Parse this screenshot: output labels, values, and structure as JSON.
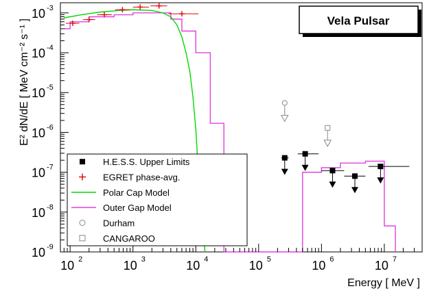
{
  "chart_data": {
    "type": "scatter",
    "title": "Vela Pulsar",
    "xlabel": "Energy [ MeV ]",
    "ylabel": "E² dN/dE [ MeV cm⁻² s⁻¹ ]",
    "xscale": "log",
    "yscale": "log",
    "xlim": [
      70,
      40000000
    ],
    "ylim": [
      1e-09,
      0.0018
    ],
    "x_ticks": [
      {
        "value": 100,
        "base": "10",
        "exp": "2"
      },
      {
        "value": 1000,
        "base": "10",
        "exp": "3"
      },
      {
        "value": 10000,
        "base": "10",
        "exp": "4"
      },
      {
        "value": 100000,
        "base": "10",
        "exp": "5"
      },
      {
        "value": 1000000,
        "base": "10",
        "exp": "6"
      },
      {
        "value": 10000000,
        "base": "10",
        "exp": "7"
      }
    ],
    "y_ticks": [
      {
        "value": 1e-09,
        "base": "10",
        "exp": "-9"
      },
      {
        "value": 1e-08,
        "base": "10",
        "exp": "-8"
      },
      {
        "value": 1e-07,
        "base": "10",
        "exp": "-7"
      },
      {
        "value": 1e-06,
        "base": "10",
        "exp": "-6"
      },
      {
        "value": 1e-05,
        "base": "10",
        "exp": "-5"
      },
      {
        "value": 0.0001,
        "base": "10",
        "exp": "-4"
      },
      {
        "value": 0.001,
        "base": "10",
        "exp": "-3"
      }
    ],
    "legend_position": "bottom-left",
    "series": [
      {
        "name": "H.E.S.S. Upper Limits",
        "kind": "upper_limit",
        "color": "#000000",
        "points": [
          {
            "x": 260000,
            "y": 2.3e-07,
            "xlo": 230000,
            "xhi": 300000
          },
          {
            "x": 550000,
            "y": 2.9e-07,
            "xlo": 420000,
            "xhi": 900000
          },
          {
            "x": 1500000,
            "y": 1.1e-07,
            "xlo": 1000000,
            "xhi": 2300000
          },
          {
            "x": 3400000,
            "y": 8e-08,
            "xlo": 2300000,
            "xhi": 5000000
          },
          {
            "x": 8700000,
            "y": 1.4e-07,
            "xlo": 5600000,
            "xhi": 25000000
          }
        ]
      },
      {
        "name": "EGRET phase-avg.",
        "kind": "points_errorbars",
        "color": "#e00000",
        "points": [
          {
            "x": 110,
            "y": 0.00055,
            "xlo": 85,
            "xhi": 140
          },
          {
            "x": 200,
            "y": 0.00068,
            "xlo": 160,
            "xhi": 250
          },
          {
            "x": 350,
            "y": 0.0009,
            "xlo": 270,
            "xhi": 460
          },
          {
            "x": 680,
            "y": 0.0012,
            "xlo": 520,
            "xhi": 900
          },
          {
            "x": 1300,
            "y": 0.0014,
            "xlo": 1000,
            "xhi": 1800
          },
          {
            "x": 2600,
            "y": 0.0015,
            "xlo": 1900,
            "xhi": 3500
          },
          {
            "x": 6000,
            "y": 0.00095,
            "xlo": 3700,
            "xhi": 11000
          }
        ]
      },
      {
        "name": "Polar Cap Model",
        "kind": "line",
        "color": "#00d800",
        "points": [
          [
            80,
            0.00075
          ],
          [
            150,
            0.0009
          ],
          [
            300,
            0.00105
          ],
          [
            600,
            0.00115
          ],
          [
            1000,
            0.0012
          ],
          [
            2000,
            0.00115
          ],
          [
            3000,
            0.001
          ],
          [
            4000,
            0.0008
          ],
          [
            5000,
            0.0005
          ],
          [
            6000,
            0.00025
          ],
          [
            7000,
            0.0001
          ],
          [
            8000,
            3.5e-05
          ],
          [
            9000,
            8e-06
          ],
          [
            10000,
            1.2e-06
          ],
          [
            11000,
            1e-07
          ],
          [
            12500,
            6e-09
          ],
          [
            14000,
            1e-09
          ]
        ]
      },
      {
        "name": "Outer Gap Model",
        "kind": "histogram",
        "color": "#e040e0",
        "edges": [
          80,
          100,
          200,
          500,
          1000,
          2000,
          4000,
          6000,
          10000,
          17000,
          28000,
          500000,
          1000000,
          2000000,
          5000000,
          10000000,
          15000000
        ],
        "values": [
          0.0004,
          0.0006,
          0.0008,
          0.0009,
          0.001,
          0.001,
          0.0007,
          0.00035,
          0.0001,
          1.7e-06,
          1e-09,
          1e-07,
          1.3e-07,
          1.7e-07,
          1.9e-07,
          4.5e-09
        ]
      },
      {
        "name": "Durham",
        "kind": "upper_limit_open",
        "marker": "circle",
        "color": "#888888",
        "points": [
          {
            "x": 260000,
            "y": 5.5e-06
          }
        ]
      },
      {
        "name": "CANGAROO",
        "kind": "upper_limit_open",
        "marker": "square",
        "color": "#888888",
        "points": [
          {
            "x": 1250000,
            "y": 1.3e-06
          }
        ]
      }
    ]
  }
}
